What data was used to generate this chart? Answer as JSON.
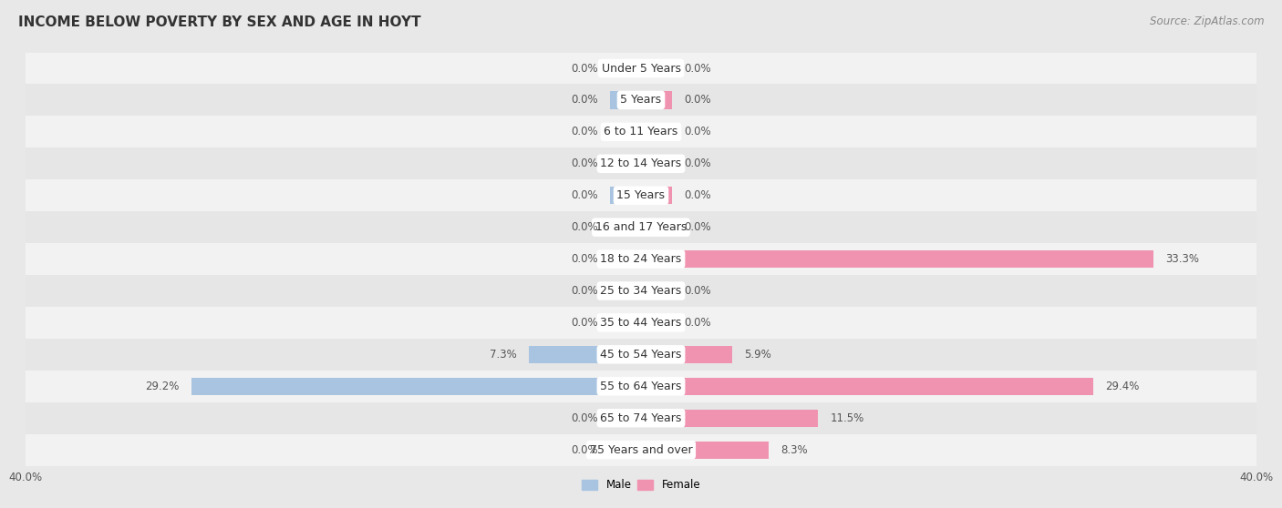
{
  "title": "INCOME BELOW POVERTY BY SEX AND AGE IN HOYT",
  "source": "Source: ZipAtlas.com",
  "categories": [
    "Under 5 Years",
    "5 Years",
    "6 to 11 Years",
    "12 to 14 Years",
    "15 Years",
    "16 and 17 Years",
    "18 to 24 Years",
    "25 to 34 Years",
    "35 to 44 Years",
    "45 to 54 Years",
    "55 to 64 Years",
    "65 to 74 Years",
    "75 Years and over"
  ],
  "male": [
    0.0,
    0.0,
    0.0,
    0.0,
    0.0,
    0.0,
    0.0,
    0.0,
    0.0,
    7.3,
    29.2,
    0.0,
    0.0
  ],
  "female": [
    0.0,
    0.0,
    0.0,
    0.0,
    0.0,
    0.0,
    33.3,
    0.0,
    0.0,
    5.9,
    29.4,
    11.5,
    8.3
  ],
  "male_color": "#a8c4e0",
  "female_color": "#f093b0",
  "male_label": "Male",
  "female_label": "Female",
  "xlim": 40.0,
  "bg_color": "#e8e8e8",
  "row_colors": [
    "#f0f0f0",
    "#e0e0e0"
  ],
  "title_fontsize": 11,
  "source_fontsize": 8.5,
  "label_fontsize": 8.5,
  "bar_label_fontsize": 8.5,
  "cat_label_fontsize": 9
}
